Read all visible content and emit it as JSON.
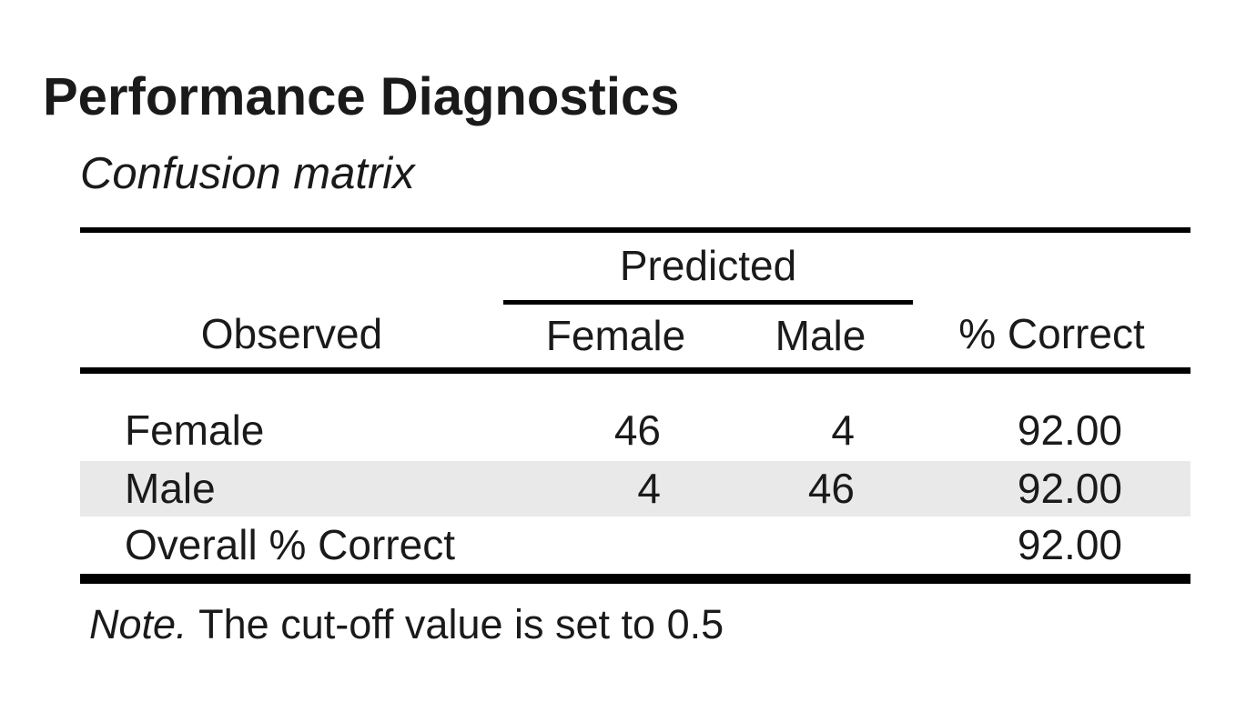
{
  "page": {
    "title": "Performance Diagnostics"
  },
  "confusion_table": {
    "caption": "Confusion matrix",
    "group_header": "Predicted",
    "columns": [
      "Observed",
      "Female",
      "Male",
      "% Correct"
    ],
    "rows": [
      {
        "cells": [
          "Female",
          "46",
          "4",
          "92.00"
        ]
      },
      {
        "cells": [
          "Male",
          "4",
          "46",
          "92.00"
        ]
      },
      {
        "cells": [
          "Overall % Correct",
          "",
          "",
          "92.00"
        ]
      }
    ],
    "note_label": "Note.",
    "note_text": "The cut-off value is set to 0.5"
  },
  "colors": {
    "stripe": "#e9e9e9",
    "rule": "#000000",
    "text": "#1a1a1a",
    "background": "#ffffff"
  }
}
